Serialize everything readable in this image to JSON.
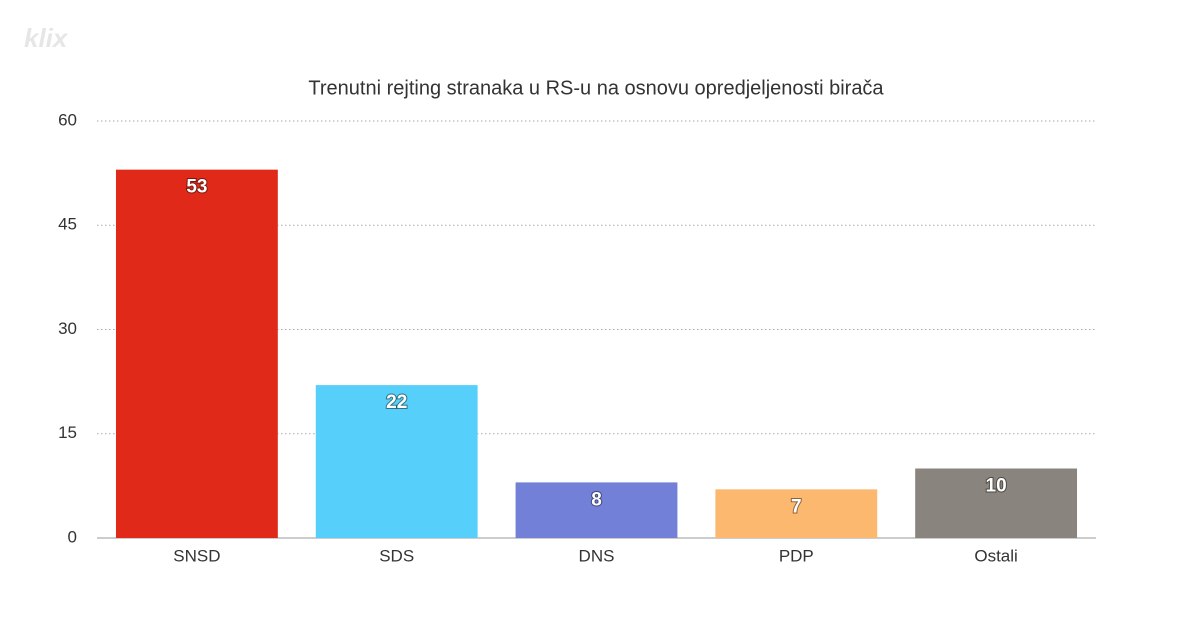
{
  "logo": "klix",
  "chart_data": {
    "type": "bar",
    "title": "Trenutni rejting stranaka u RS-u na osnovu opredjeljenosti birača",
    "categories": [
      "SNSD",
      "SDS",
      "DNS",
      "PDP",
      "Ostali"
    ],
    "values": [
      53,
      22,
      8,
      7,
      10
    ],
    "colors": [
      "#e1291a",
      "#56cffa",
      "#7280d8",
      "#fbb86e",
      "#8a847f"
    ],
    "ylim": [
      0,
      60
    ],
    "yticks": [
      0,
      15,
      30,
      45,
      60
    ],
    "grid": true
  }
}
